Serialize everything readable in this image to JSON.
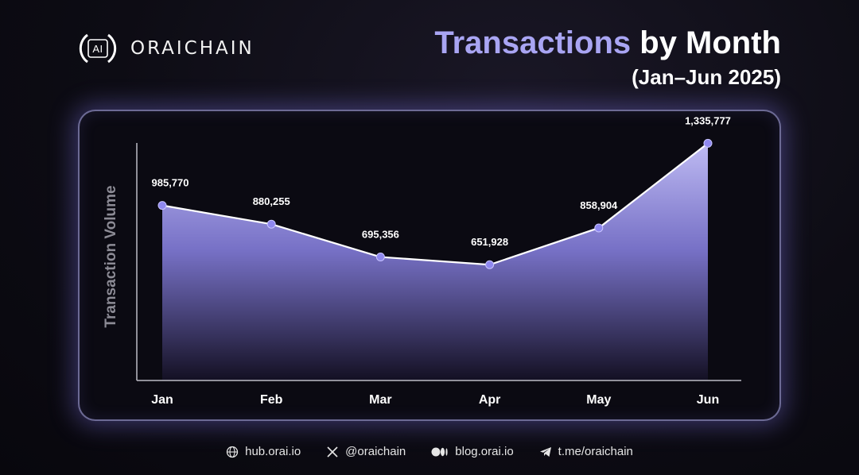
{
  "brand": {
    "logo_badge": "AI",
    "logo_text": "ORAICHAIN"
  },
  "header": {
    "title_accent": "Transactions",
    "title_rest": " by Month",
    "subtitle": "(Jan–Jun 2025)"
  },
  "colors": {
    "accent": "#a9a5f3",
    "line": "#ffffff",
    "point": "#8f88ef",
    "fill_top": "#a9a4f5"
  },
  "chart_data": {
    "type": "area",
    "categories": [
      "Jan",
      "Feb",
      "Mar",
      "Apr",
      "May",
      "Jun"
    ],
    "values": [
      985770,
      880255,
      695356,
      651928,
      858904,
      1335777
    ],
    "value_labels": [
      "985,770",
      "880,255",
      "695,356",
      "651,928",
      "858,904",
      "1,335,777"
    ],
    "title": "Transactions by Month",
    "subtitle": "(Jan–Jun 2025)",
    "xlabel": "",
    "ylabel": "Transaction Volume",
    "ylim": [
      0,
      1400000
    ],
    "grid": false
  },
  "footer": {
    "links": [
      {
        "icon": "globe-icon",
        "label": "hub.orai.io"
      },
      {
        "icon": "x-icon",
        "label": "@oraichain"
      },
      {
        "icon": "medium-icon",
        "label": "blog.orai.io"
      },
      {
        "icon": "telegram-icon",
        "label": "t.me/oraichain"
      }
    ]
  }
}
